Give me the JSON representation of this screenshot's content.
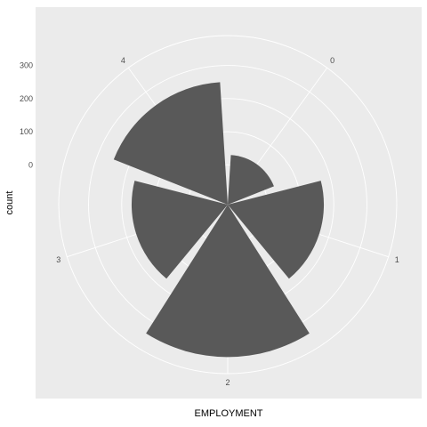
{
  "chart_data": {
    "type": "bar",
    "coord": "polar",
    "categories": [
      "0",
      "1",
      "2",
      "3",
      "4"
    ],
    "values": [
      30,
      170,
      340,
      170,
      250
    ],
    "xlabel": "EMPLOYMENT",
    "ylabel": "count",
    "yticks": [
      0,
      100,
      200,
      300
    ],
    "ylim": [
      -120,
      390
    ],
    "grid": true,
    "colors": {
      "panel": "#ebebeb",
      "grid": "#ffffff",
      "bar": "#595959",
      "tick_text": "#4d4d4d"
    }
  }
}
